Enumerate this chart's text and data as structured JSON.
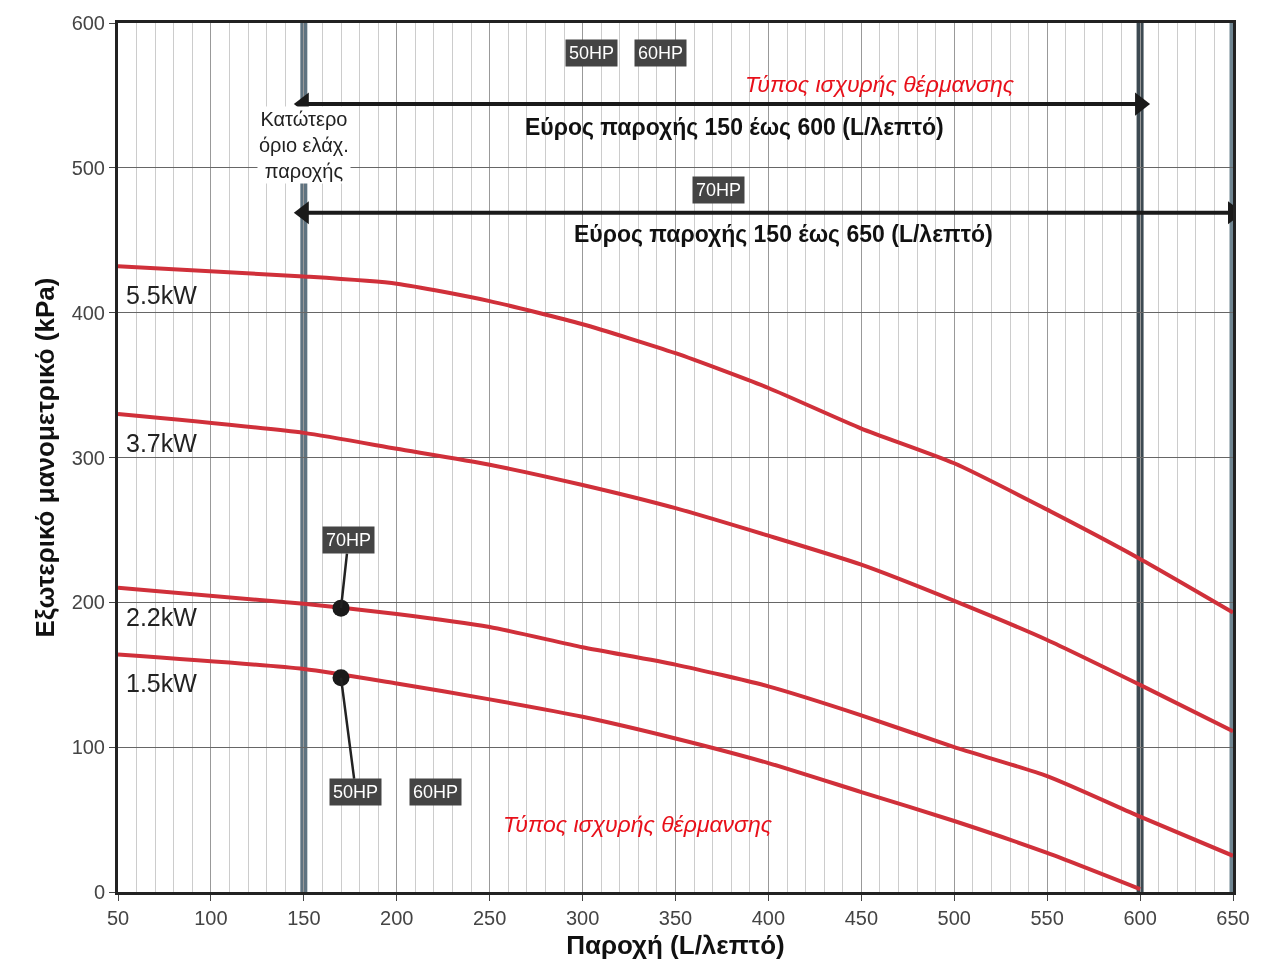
{
  "chart_data": {
    "type": "line",
    "xlabel": "Παροχή (L/λεπτό)",
    "ylabel": "Εξωτερικό μανομετρικό (kPa)",
    "x": [
      50,
      150,
      200,
      250,
      300,
      350,
      400,
      450,
      500,
      550,
      600,
      650
    ],
    "series": [
      {
        "name": "5.5kW",
        "color": "#d0303a",
        "values": [
          432,
          425,
          420,
          408,
          392,
          372,
          348,
          320,
          296,
          264,
          230,
          193
        ]
      },
      {
        "name": "3.7kW",
        "color": "#d0303a",
        "values": [
          330,
          317,
          306,
          295,
          281,
          265,
          246,
          226,
          201,
          174,
          143,
          111
        ]
      },
      {
        "name": "2.2kW",
        "color": "#d0303a",
        "values": [
          210,
          199,
          192,
          183,
          169,
          157,
          142,
          122,
          100,
          80,
          52,
          25
        ]
      },
      {
        "name": "1.5kW",
        "color": "#d0303a",
        "values": [
          164,
          154,
          144,
          133,
          121,
          106,
          89,
          69,
          49,
          27,
          2,
          null
        ]
      },
      {
        "type": "scatter",
        "color": "#1a1a1a",
        "x": [
          170,
          170
        ],
        "values": [
          196,
          148
        ]
      },
      {
        "type": "line",
        "color": "#1a1a1a",
        "marker": "triangle",
        "x": [
          150,
          600
        ],
        "values": [
          544,
          544
        ]
      },
      {
        "type": "line",
        "color": "#1a1a1a",
        "marker": "triangle",
        "x": [
          150,
          650
        ],
        "values": [
          469,
          469
        ]
      }
    ],
    "xlim": [
      50,
      650
    ],
    "xticks": [
      50,
      100,
      150,
      200,
      250,
      300,
      350,
      400,
      450,
      500,
      550,
      600,
      650
    ],
    "ylim": [
      0,
      600
    ],
    "yticks": [
      0,
      100,
      200,
      300,
      400,
      500,
      600
    ],
    "grid": true,
    "line_style": "solid",
    "ref_lines": [
      {
        "axis": "x",
        "value": 150,
        "label": "Κατώτερο όριο ελάχ. παροχής",
        "color": "#5f7380"
      },
      {
        "axis": "x",
        "value": 600,
        "label": null,
        "color": "#3d4a52"
      },
      {
        "axis": "x",
        "value": 650,
        "label": null,
        "color": "#6f8591"
      }
    ],
    "annotations": [
      "50HP",
      "60HP",
      "Τύπος ισχυρής θέρμανσης",
      "Εύρος παροχής 150 έως 600 (L/λεπτό)",
      "70HP",
      "Εύρος παροχής 150 έως 650 (L/λεπτό)",
      {
        "text": "70HP",
        "x": 170,
        "y": 196
      },
      {
        "text": "50HP",
        "x": 170,
        "y": 148
      },
      "60HP",
      "Τύπος ισχυρής θέρμανσης"
    ]
  }
}
